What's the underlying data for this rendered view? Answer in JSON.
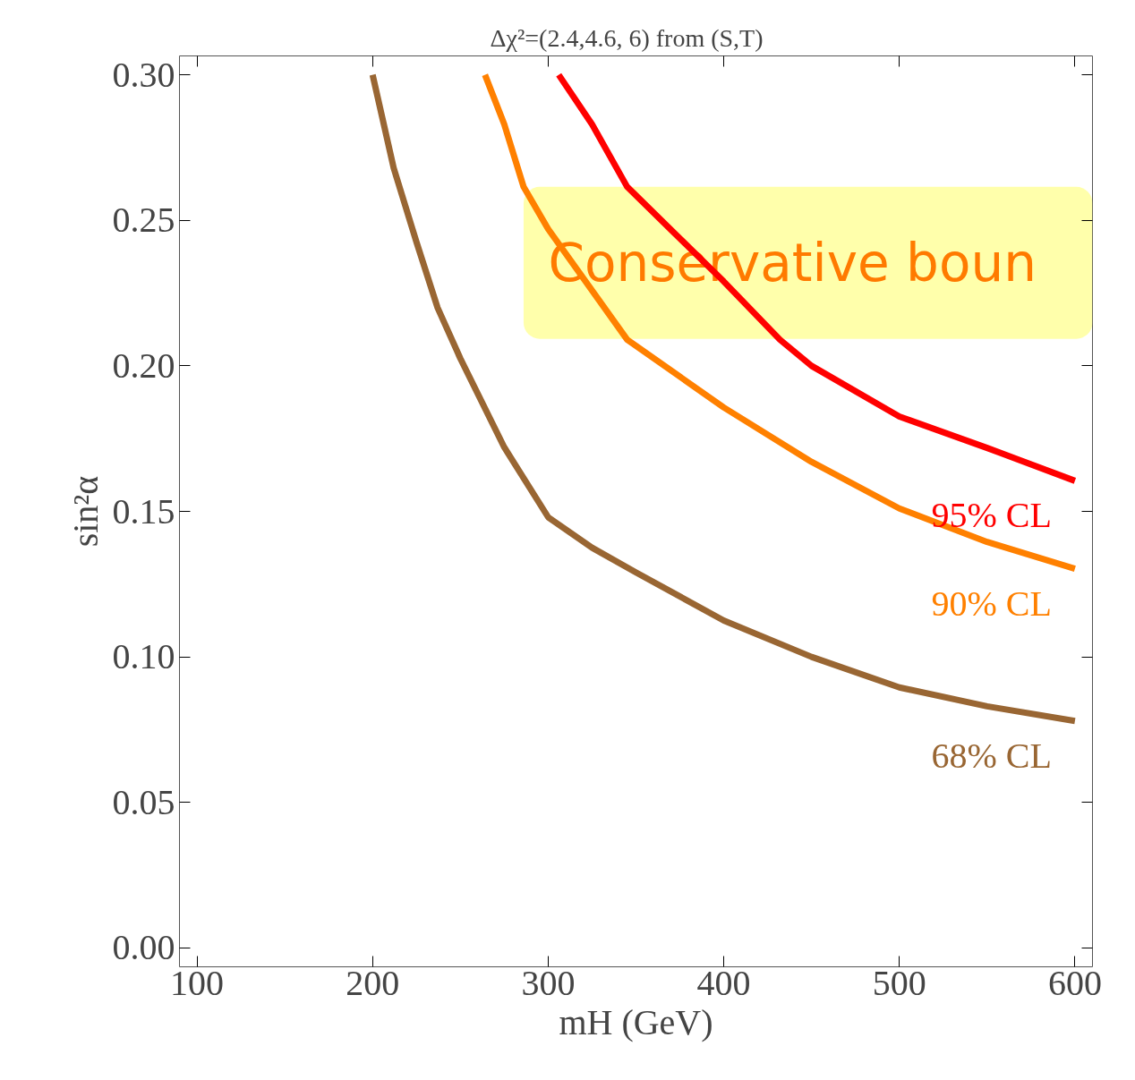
{
  "chart_data": {
    "type": "line",
    "title": "Δχ²=(2.4,4.6, 6)    from (S,T)",
    "xlabel": "mH (GeV)",
    "ylabel": "sin²α",
    "series": [
      {
        "name": "95% CL",
        "color": "#ff0000",
        "x": [
          306,
          325,
          345,
          400,
          432,
          450,
          500,
          550,
          600
        ],
        "values": [
          0.3,
          0.283,
          0.2615,
          0.229,
          0.209,
          0.2,
          0.1826,
          0.1718,
          0.1605
        ]
      },
      {
        "name": "90% CL",
        "color": "#ff8000",
        "x": [
          264,
          275,
          286,
          300,
          345,
          400,
          450,
          500,
          550,
          600
        ],
        "values": [
          0.3,
          0.283,
          0.2615,
          0.247,
          0.209,
          0.1857,
          0.167,
          0.151,
          0.1395,
          0.1303
        ]
      },
      {
        "name": "68% CL",
        "color": "#996633",
        "x": [
          200,
          212,
          225,
          237,
          250,
          275,
          300,
          325,
          350,
          400,
          450,
          500,
          550,
          600
        ],
        "values": [
          0.3,
          0.268,
          0.2425,
          0.22,
          0.2025,
          0.172,
          0.148,
          0.1375,
          0.129,
          0.1125,
          0.1,
          0.0895,
          0.083,
          0.078
        ]
      }
    ],
    "annotations": [
      "Conservative boun"
    ],
    "xlim": [
      90,
      610
    ],
    "ylim": [
      -0.0065,
      0.3065
    ],
    "xticks": [
      100,
      200,
      300,
      400,
      500,
      600
    ],
    "yticks": [
      {
        "value": 0,
        "label": "0.00"
      },
      {
        "value": 0.05,
        "label": "0.05"
      },
      {
        "value": 0.1,
        "label": "0.10"
      },
      {
        "value": 0.15,
        "label": "0.15"
      },
      {
        "value": 0.2,
        "label": "0.20"
      },
      {
        "value": 0.25,
        "label": "0.25"
      },
      {
        "value": 0.3,
        "label": "0.30"
      }
    ],
    "grid": false,
    "marker": "none",
    "line_style": "solid"
  }
}
